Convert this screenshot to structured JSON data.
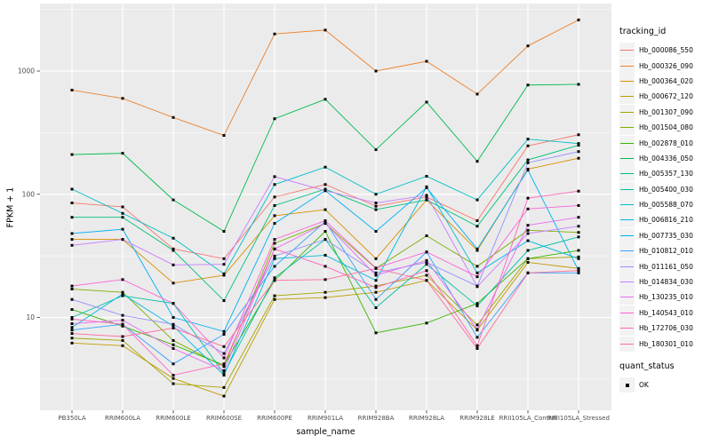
{
  "figure": {
    "panel_bg": "#EBEBEB",
    "grid_color": "#FFFFFF",
    "tick_color": "#333333",
    "tick_label_color": "#4D4D4D",
    "point_color": "#000000"
  },
  "chart_data": {
    "type": "line",
    "title": "",
    "xlabel": "sample_name",
    "ylabel": "FPKM + 1",
    "y_scale": "log10",
    "y_ticks": [
      10,
      100,
      1000
    ],
    "y_minor_ticks": [
      3.162,
      31.62,
      316.2,
      3162
    ],
    "ylim": [
      1.8,
      3300
    ],
    "grid": "on",
    "legend_position": "right",
    "point_shape": "filled-square",
    "categories": [
      "PB350LA",
      "RRIM600LA",
      "RRIM600LE",
      "RRIM600SE",
      "RRIM600PE",
      "RRIM901LA",
      "RRIM928BA",
      "RRIM928LA",
      "RRIM928LE",
      "RRII105LA_Control",
      "RRII105LA_Stressed"
    ],
    "series": [
      {
        "name": "Hb_000086_550",
        "color": "#F8766D",
        "values": [
          85,
          79,
          36,
          30,
          95,
          120,
          80,
          95,
          61,
          247,
          304
        ]
      },
      {
        "name": "Hb_000326_090",
        "color": "#EA8331",
        "values": [
          700,
          600,
          420,
          300,
          2000,
          2150,
          1000,
          1200,
          650,
          1600,
          2600
        ]
      },
      {
        "name": "Hb_000364_020",
        "color": "#D89000",
        "values": [
          43,
          43,
          19,
          22,
          67,
          75,
          30,
          90,
          35,
          160,
          196
        ]
      },
      {
        "name": "Hb_000672_120",
        "color": "#C09B00",
        "values": [
          6.2,
          5.9,
          3.2,
          2.3,
          14,
          14.5,
          16,
          20,
          7.9,
          28,
          25
        ]
      },
      {
        "name": "Hb_001307_090",
        "color": "#A3A500",
        "values": [
          6.8,
          6.5,
          2.9,
          2.7,
          15,
          16,
          18,
          22,
          8.7,
          30,
          31
        ]
      },
      {
        "name": "Hb_001504_080",
        "color": "#7CAE00",
        "values": [
          17,
          16,
          6.5,
          4,
          40,
          58,
          25,
          46,
          26,
          51,
          49
        ]
      },
      {
        "name": "Hb_002878_010",
        "color": "#39B600",
        "values": [
          11.6,
          8.5,
          6,
          4.1,
          20,
          50,
          7.5,
          9,
          13,
          30,
          35
        ]
      },
      {
        "name": "Hb_004336_050",
        "color": "#00BB4E",
        "values": [
          210,
          215,
          90,
          50,
          410,
          590,
          230,
          560,
          185,
          770,
          780
        ]
      },
      {
        "name": "Hb_005357_130",
        "color": "#00BF7D",
        "values": [
          65,
          65,
          35,
          13.7,
          81,
          110,
          75,
          90,
          55,
          190,
          250
        ]
      },
      {
        "name": "Hb_005400_030",
        "color": "#00C1A3",
        "values": [
          10,
          15,
          13,
          3.5,
          21,
          43,
          12,
          27,
          12.4,
          35,
          45
        ]
      },
      {
        "name": "Hb_005588_070",
        "color": "#00BFC4",
        "values": [
          110,
          70,
          44,
          22.6,
          120,
          166,
          100,
          140,
          90,
          280,
          258
        ]
      },
      {
        "name": "Hb_006816_210",
        "color": "#00BAE0",
        "values": [
          8.3,
          15.5,
          8.5,
          3.4,
          30,
          32,
          20,
          115,
          23,
          42,
          30
        ]
      },
      {
        "name": "Hb_007735_030",
        "color": "#00B0F6",
        "values": [
          48,
          52,
          10,
          7.7,
          58,
          107,
          50,
          113,
          36,
          157,
          24
        ]
      },
      {
        "name": "Hb_010812_010",
        "color": "#35A2FF",
        "values": [
          7.9,
          8.8,
          4.2,
          7.3,
          26,
          60,
          14,
          34,
          6.9,
          23,
          23
        ]
      },
      {
        "name": "Hb_011161_050",
        "color": "#9590FF",
        "values": [
          14,
          10.4,
          8.8,
          5.1,
          31.5,
          43,
          23,
          28,
          18,
          180,
          222
        ]
      },
      {
        "name": "Hb_014834_030",
        "color": "#C77CFF",
        "values": [
          38.5,
          43,
          26.7,
          27,
          139,
          107,
          85,
          98,
          17.8,
          48,
          55
        ]
      },
      {
        "name": "Hb_130235_010",
        "color": "#E76BF3",
        "values": [
          8.9,
          9.5,
          5.6,
          3.7,
          36,
          58,
          22,
          29,
          8,
          56,
          65
        ]
      },
      {
        "name": "Hb_140543_010",
        "color": "#FA62DB",
        "values": [
          18,
          20.3,
          13,
          4.7,
          43,
          61,
          25.2,
          34,
          21.4,
          76,
          81
        ]
      },
      {
        "name": "Hb_172706_030",
        "color": "#FF62BC",
        "values": [
          9.7,
          8.8,
          3.4,
          4.2,
          36,
          26,
          17.5,
          24,
          5.9,
          93,
          106
        ]
      },
      {
        "name": "Hb_180301_010",
        "color": "#FF6A98",
        "values": [
          7.4,
          7,
          8.2,
          5.8,
          20,
          20.3,
          25,
          20,
          5.6,
          23,
          24
        ]
      }
    ]
  },
  "legend": {
    "tracking_title": "tracking_id",
    "quant_title": "quant_status",
    "quant_items": [
      {
        "label": "OK"
      }
    ]
  }
}
